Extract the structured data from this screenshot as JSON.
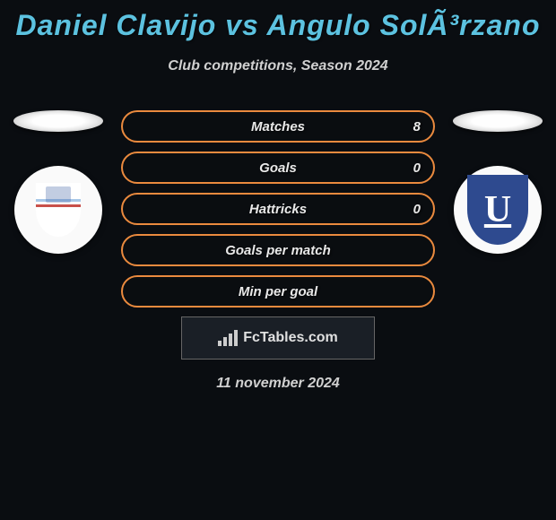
{
  "header": {
    "title": "Daniel Clavijo vs Angulo SolÃ³rzano",
    "title_color": "#5cc2e0",
    "subtitle": "Club competitions, Season 2024"
  },
  "stats": [
    {
      "label": "Matches",
      "value": "8"
    },
    {
      "label": "Goals",
      "value": "0"
    },
    {
      "label": "Hattricks",
      "value": "0"
    },
    {
      "label": "Goals per match",
      "value": ""
    },
    {
      "label": "Min per goal",
      "value": ""
    }
  ],
  "pill_border_color": "#ea8a3e",
  "background_color": "#0a0d11",
  "badge_left": {
    "bg": "#fafafa",
    "shield_colors": [
      "#ffffff",
      "#a8c8e8",
      "#c8504a",
      "#345a9e"
    ]
  },
  "badge_right": {
    "bg": "#fafafa",
    "shield_color": "#2e4a8f",
    "letter": "U",
    "letter_color": "#ffffff"
  },
  "footer": {
    "brand": "FcTables.com",
    "date": "11 november 2024"
  }
}
